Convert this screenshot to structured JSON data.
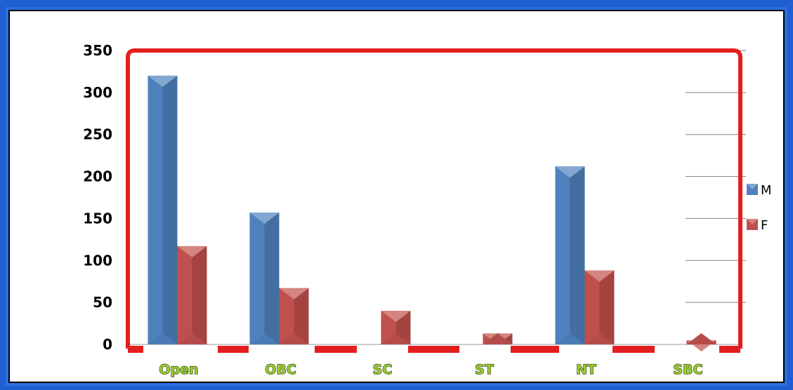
{
  "chart_data": {
    "type": "bar",
    "title": "",
    "xlabel": "",
    "ylabel": "",
    "categories": [
      "Open",
      "OBC",
      "SC",
      "ST",
      "NT",
      "SBC"
    ],
    "ylim": [
      0,
      350
    ],
    "yticks": [
      0,
      50,
      100,
      150,
      200,
      250,
      300,
      350
    ],
    "grid": true,
    "legend": "right",
    "series": [
      {
        "name": "M",
        "color": "#4f81bd",
        "values": [
          320,
          157,
          0,
          0,
          212,
          0
        ]
      },
      {
        "name": "F",
        "color": "#c0504d",
        "values": [
          117,
          67,
          40,
          13,
          88,
          5
        ]
      }
    ]
  }
}
